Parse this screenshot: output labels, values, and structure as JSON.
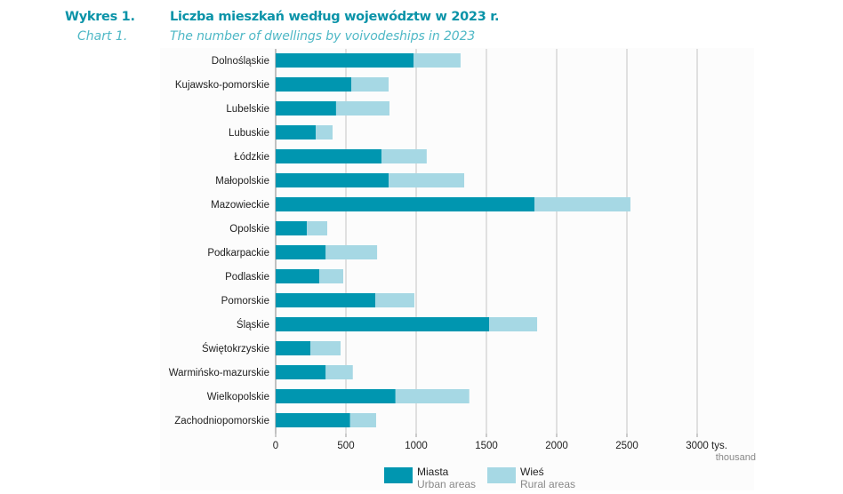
{
  "header": {
    "label_pl": "Wykres 1.",
    "label_en": "Chart 1.",
    "title_pl": "Liczba mieszkań według województw w 2023 r.",
    "title_en": "The number of dwellings by voivodeships in 2023"
  },
  "colors": {
    "urban": "#0096b0",
    "rural": "#a6d8e4",
    "title": "#0a93a8",
    "subtitle": "#4fb8c6",
    "grid": "#c4c4c4"
  },
  "chart_data": {
    "type": "bar",
    "orientation": "horizontal",
    "stacked": true,
    "title": "Liczba mieszkań według województw w 2023 r.",
    "subtitle": "The number of dwellings by voivodeships in 2023",
    "xlabel": "tys.",
    "xlabel_en": "thousand",
    "ylabel": "",
    "xlim": [
      0,
      3000
    ],
    "xticks": [
      0,
      500,
      1000,
      1500,
      2000,
      2500,
      3000
    ],
    "grid": true,
    "legend_position": "bottom",
    "categories": [
      "Dolnośląskie",
      "Kujawsko-pomorskie",
      "Lubelskie",
      "Lubuskie",
      "Łódzkie",
      "Małopolskie",
      "Mazowieckie",
      "Opolskie",
      "Podkarpackie",
      "Podlaskie",
      "Pomorskie",
      "Śląskie",
      "Świętokrzyskie",
      "Warmińsko-mazurskie",
      "Wielkopolskie",
      "Zachodniopomorskie"
    ],
    "series": [
      {
        "name": "Miasta",
        "name_en": "Urban areas",
        "values": [
          981,
          538,
          430,
          285,
          753,
          804,
          1842,
          222,
          356,
          310,
          709,
          1519,
          247,
          356,
          853,
          530
        ]
      },
      {
        "name": "Wieś",
        "name_en": "Rural areas",
        "values": [
          335,
          266,
          380,
          120,
          322,
          538,
          683,
          145,
          366,
          171,
          278,
          342,
          215,
          193,
          525,
          185
        ]
      }
    ]
  }
}
